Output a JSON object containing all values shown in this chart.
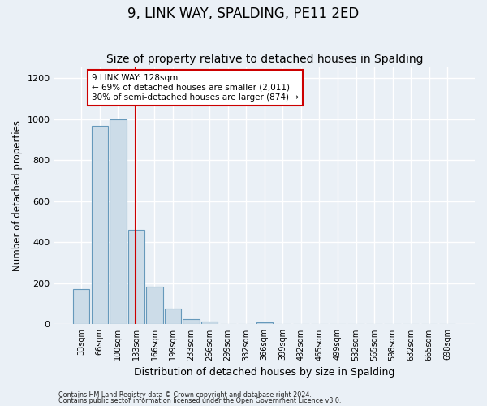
{
  "title": "9, LINK WAY, SPALDING, PE11 2ED",
  "subtitle": "Size of property relative to detached houses in Spalding",
  "xlabel": "Distribution of detached houses by size in Spalding",
  "ylabel": "Number of detached properties",
  "bar_labels": [
    "33sqm",
    "66sqm",
    "100sqm",
    "133sqm",
    "166sqm",
    "199sqm",
    "233sqm",
    "266sqm",
    "299sqm",
    "332sqm",
    "366sqm",
    "399sqm",
    "432sqm",
    "465sqm",
    "499sqm",
    "532sqm",
    "565sqm",
    "598sqm",
    "632sqm",
    "665sqm",
    "698sqm"
  ],
  "bar_values": [
    170,
    965,
    1000,
    460,
    185,
    75,
    25,
    15,
    0,
    0,
    10,
    0,
    0,
    0,
    0,
    0,
    0,
    0,
    0,
    0,
    0
  ],
  "bar_color": "#ccdce8",
  "bar_edge_color": "#6699bb",
  "vline_x": 3,
  "vline_color": "#cc0000",
  "ylim": [
    0,
    1250
  ],
  "yticks": [
    0,
    200,
    400,
    600,
    800,
    1000,
    1200
  ],
  "annotation_title": "9 LINK WAY: 128sqm",
  "annotation_line1": "← 69% of detached houses are smaller (2,011)",
  "annotation_line2": "30% of semi-detached houses are larger (874) →",
  "annotation_box_color": "#ffffff",
  "annotation_box_edge": "#cc0000",
  "footer_line1": "Contains HM Land Registry data © Crown copyright and database right 2024.",
  "footer_line2": "Contains public sector information licensed under the Open Government Licence v3.0.",
  "background_color": "#eaf0f6",
  "grid_color": "#ffffff",
  "title_fontsize": 12,
  "subtitle_fontsize": 10
}
